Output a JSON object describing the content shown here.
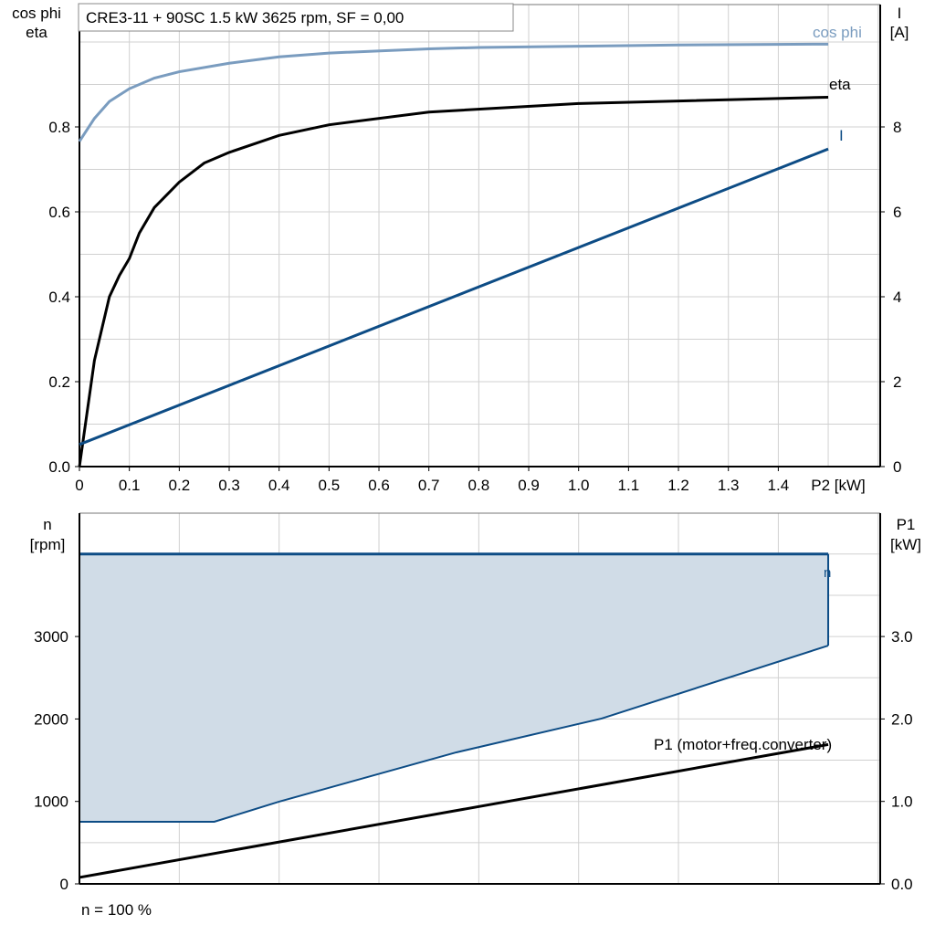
{
  "chart_data": [
    {
      "type": "line",
      "title": "CRE3-11 + 90SC   1.5 kW   3625 rpm, SF = 0,00",
      "xlabel": "P2 [kW]",
      "ylabel_left": [
        "cos phi",
        "eta"
      ],
      "ylabel_right": [
        "I",
        "[A]"
      ],
      "xlim": [
        0,
        1.5
      ],
      "ylim_left": [
        0,
        1.0
      ],
      "ylim_right": [
        0,
        10.5
      ],
      "x_ticks": [
        "0",
        "0.1",
        "0.2",
        "0.3",
        "0.4",
        "0.5",
        "0.6",
        "0.7",
        "0.8",
        "0.9",
        "1.0",
        "1.1",
        "1.2",
        "1.3",
        "1.4"
      ],
      "y_left_ticks": [
        "0.0",
        "0.2",
        "0.4",
        "0.6",
        "0.8"
      ],
      "y_right_ticks": [
        "0",
        "2",
        "4",
        "6",
        "8"
      ],
      "grid": true,
      "series": [
        {
          "name": "cos phi",
          "axis": "left",
          "color": "#7a9cbf",
          "x": [
            0,
            0.03,
            0.06,
            0.1,
            0.15,
            0.2,
            0.3,
            0.4,
            0.5,
            0.7,
            0.8,
            1.0,
            1.2,
            1.5
          ],
          "y": [
            0.766,
            0.82,
            0.86,
            0.89,
            0.915,
            0.93,
            0.95,
            0.965,
            0.974,
            0.984,
            0.987,
            0.99,
            0.993,
            0.995
          ]
        },
        {
          "name": "eta",
          "axis": "left",
          "color": "#000000",
          "x": [
            0,
            0.03,
            0.06,
            0.08,
            0.1,
            0.12,
            0.15,
            0.2,
            0.25,
            0.3,
            0.4,
            0.5,
            0.7,
            1.0,
            1.5
          ],
          "y": [
            0,
            0.25,
            0.4,
            0.45,
            0.49,
            0.55,
            0.61,
            0.67,
            0.715,
            0.74,
            0.78,
            0.805,
            0.835,
            0.855,
            0.87
          ]
        },
        {
          "name": "I",
          "axis": "right",
          "color": "#0d4c85",
          "x": [
            0,
            1.5
          ],
          "y": [
            0.52,
            7.48
          ]
        }
      ]
    },
    {
      "type": "area",
      "ylabel_left": [
        "n",
        "[rpm]"
      ],
      "ylabel_right": [
        "P1",
        "[kW]"
      ],
      "xlim": [
        0,
        1.5
      ],
      "ylim_left": [
        0,
        4500
      ],
      "ylim_right": [
        0,
        4.5
      ],
      "y_left_ticks": [
        "0",
        "1000",
        "2000",
        "3000"
      ],
      "y_right_ticks": [
        "0.0",
        "1.0",
        "2.0",
        "3.0"
      ],
      "grid": true,
      "footer": "n = 100 %",
      "series": [
        {
          "name": "n",
          "axis": "left",
          "color": "#0d4c85",
          "fill": "#d0dce7",
          "upper_x": [
            0,
            1.5
          ],
          "upper_y": [
            4000,
            4000
          ],
          "lower_x": [
            0,
            0.27,
            0.4,
            0.755,
            1.046,
            1.5
          ],
          "lower_y": [
            753,
            753,
            997,
            1595,
            2005,
            2890
          ]
        },
        {
          "name": "P1 (motor+freq.converter)",
          "axis": "right",
          "color": "#000000",
          "x": [
            0,
            1.5
          ],
          "y": [
            0.078,
            1.69
          ]
        }
      ]
    }
  ]
}
